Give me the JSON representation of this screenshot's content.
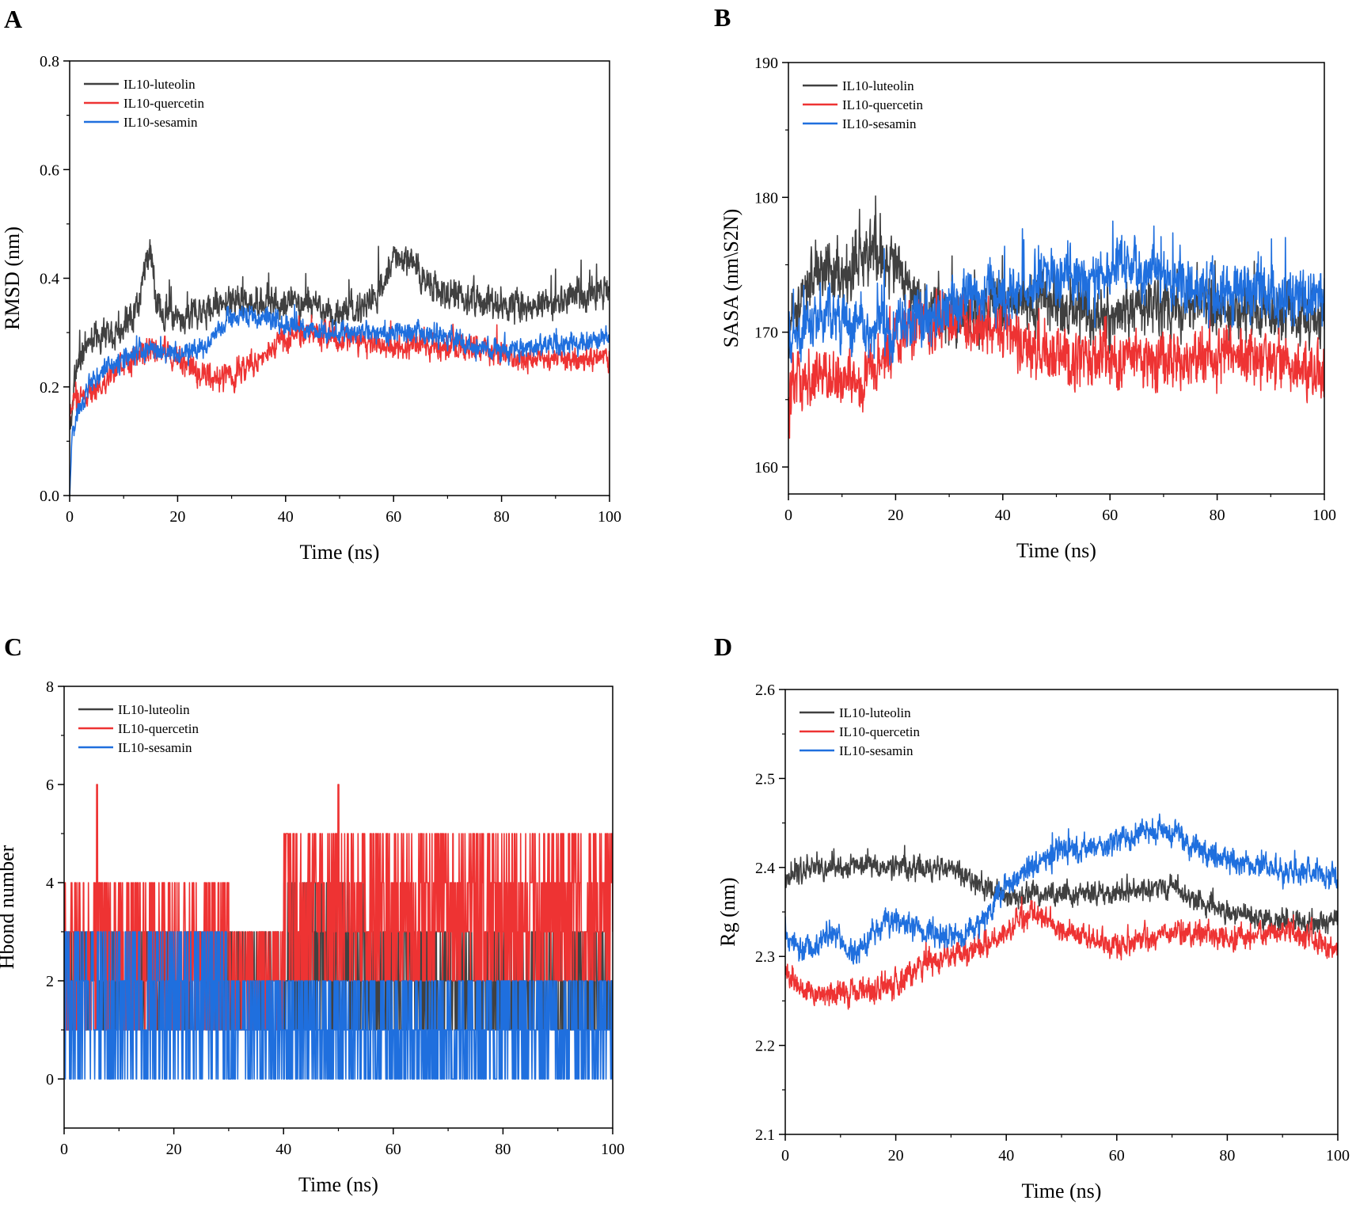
{
  "figure": {
    "panels": [
      "A",
      "B",
      "C",
      "D"
    ]
  },
  "series_names": [
    "IL10-luteolin",
    "IL10-quercetin",
    "IL10-sesamin"
  ],
  "series_colors": [
    "#404040",
    "#ee3333",
    "#1f6fde"
  ],
  "chart_data": [
    {
      "panel": "A",
      "type": "line",
      "title": "",
      "xlabel": "Time (ns)",
      "ylabel": "RMSD (nm)",
      "xlim": [
        0,
        100
      ],
      "ylim": [
        0,
        0.8
      ],
      "xticks": [
        0,
        20,
        40,
        60,
        80,
        100
      ],
      "yticks": [
        0.0,
        0.2,
        0.4,
        0.6,
        0.8
      ],
      "ytick_labels": [
        "0.0",
        "0.2",
        "0.4",
        "0.6",
        "0.8"
      ],
      "legend": "top-left",
      "series": [
        {
          "name": "IL10-luteolin",
          "color": "#404040",
          "noise": 0.035,
          "spikes": 0.05,
          "seed": 11,
          "x": [
            0,
            1,
            3,
            6,
            10,
            13,
            14,
            15,
            16,
            20,
            25,
            30,
            35,
            40,
            45,
            50,
            55,
            58,
            60,
            62,
            64,
            66,
            70,
            75,
            80,
            85,
            90,
            95,
            100
          ],
          "y": [
            0.12,
            0.22,
            0.28,
            0.3,
            0.31,
            0.36,
            0.43,
            0.45,
            0.35,
            0.32,
            0.34,
            0.36,
            0.35,
            0.36,
            0.35,
            0.33,
            0.35,
            0.38,
            0.45,
            0.44,
            0.43,
            0.39,
            0.37,
            0.36,
            0.35,
            0.34,
            0.36,
            0.37,
            0.38
          ]
        },
        {
          "name": "IL10-quercetin",
          "color": "#ee3333",
          "noise": 0.03,
          "spikes": 0.02,
          "seed": 23,
          "x": [
            0,
            2,
            5,
            10,
            15,
            20,
            25,
            30,
            35,
            40,
            45,
            50,
            55,
            60,
            65,
            70,
            75,
            80,
            85,
            90,
            95,
            100
          ],
          "y": [
            0.16,
            0.18,
            0.2,
            0.24,
            0.27,
            0.25,
            0.22,
            0.22,
            0.25,
            0.29,
            0.3,
            0.29,
            0.28,
            0.27,
            0.28,
            0.27,
            0.27,
            0.26,
            0.25,
            0.25,
            0.25,
            0.25
          ]
        },
        {
          "name": "IL10-sesamin",
          "color": "#1f6fde",
          "noise": 0.025,
          "spikes": 0.015,
          "seed": 37,
          "x": [
            0,
            0.5,
            2,
            5,
            10,
            15,
            20,
            25,
            30,
            35,
            40,
            45,
            50,
            55,
            60,
            65,
            70,
            75,
            80,
            85,
            90,
            95,
            100
          ],
          "y": [
            0.0,
            0.12,
            0.17,
            0.22,
            0.25,
            0.27,
            0.26,
            0.27,
            0.33,
            0.33,
            0.32,
            0.3,
            0.3,
            0.3,
            0.3,
            0.3,
            0.29,
            0.27,
            0.27,
            0.27,
            0.28,
            0.28,
            0.29
          ]
        }
      ]
    },
    {
      "panel": "B",
      "type": "line",
      "title": "",
      "xlabel": "Time (ns)",
      "ylabel": "SASA (nm\\S2N)",
      "xlim": [
        0,
        100
      ],
      "ylim": [
        158,
        190
      ],
      "xticks": [
        0,
        20,
        40,
        60,
        80,
        100
      ],
      "yticks": [
        160,
        170,
        180,
        190
      ],
      "ytick_labels": [
        "160",
        "170",
        "180",
        "190"
      ],
      "legend": "top-left",
      "series": [
        {
          "name": "IL10-luteolin",
          "color": "#404040",
          "noise": 2.6,
          "spikes": 2.5,
          "seed": 51,
          "x": [
            0,
            5,
            10,
            15,
            20,
            25,
            30,
            40,
            50,
            60,
            70,
            80,
            90,
            100
          ],
          "y": [
            170,
            175,
            174,
            176,
            175,
            172,
            171,
            172,
            172,
            171,
            172,
            172,
            171,
            171
          ]
        },
        {
          "name": "IL10-quercetin",
          "color": "#ee3333",
          "noise": 2.6,
          "spikes": 2.5,
          "seed": 63,
          "x": [
            0,
            5,
            10,
            15,
            20,
            25,
            30,
            40,
            50,
            60,
            70,
            80,
            90,
            100
          ],
          "y": [
            166,
            167,
            166,
            167,
            169,
            171,
            171,
            170,
            168,
            168,
            168,
            168,
            168,
            167
          ]
        },
        {
          "name": "IL10-sesamin",
          "color": "#1f6fde",
          "noise": 2.6,
          "spikes": 2.8,
          "seed": 77,
          "x": [
            0,
            5,
            10,
            15,
            20,
            25,
            30,
            40,
            50,
            60,
            62,
            70,
            80,
            90,
            100
          ],
          "y": [
            170,
            171,
            171,
            170,
            170,
            171,
            172,
            173,
            174,
            174,
            175,
            174,
            173,
            173,
            172
          ]
        }
      ]
    },
    {
      "panel": "C",
      "type": "line",
      "title": "",
      "xlabel": "Time (ns)",
      "ylabel": "Hbond number",
      "xlim": [
        0,
        100
      ],
      "ylim": [
        -1,
        8
      ],
      "xticks": [
        0,
        20,
        40,
        60,
        80,
        100
      ],
      "yticks": [
        0,
        2,
        4,
        6,
        8
      ],
      "ytick_labels": [
        "0",
        "2",
        "4",
        "6",
        "8"
      ],
      "legend": "top-left",
      "series": [
        {
          "name": "IL10-luteolin",
          "color": "#404040",
          "kind": "hbond",
          "seed": 91,
          "segments": [
            [
              0,
              30,
              1,
              3
            ],
            [
              30,
              40,
              1,
              3
            ],
            [
              40,
              55,
              1,
              4
            ],
            [
              55,
              100,
              1,
              3
            ]
          ]
        },
        {
          "name": "IL10-quercetin",
          "color": "#ee3333",
          "kind": "hbond",
          "seed": 103,
          "segments": [
            [
              0,
              30,
              1,
              4
            ],
            [
              30,
              40,
              1,
              3
            ],
            [
              40,
              100,
              2,
              5
            ]
          ],
          "peaks": [
            [
              6,
              6
            ],
            [
              50,
              6
            ]
          ]
        },
        {
          "name": "IL10-sesamin",
          "color": "#1f6fde",
          "kind": "hbond",
          "seed": 117,
          "segments": [
            [
              0,
              30,
              0,
              3
            ],
            [
              30,
              100,
              0,
              2
            ]
          ]
        }
      ]
    },
    {
      "panel": "D",
      "type": "line",
      "title": "",
      "xlabel": "Time (ns)",
      "ylabel": "Rg (nm)",
      "xlim": [
        0,
        100
      ],
      "ylim": [
        2.1,
        2.6
      ],
      "xticks": [
        0,
        20,
        40,
        60,
        80,
        100
      ],
      "yticks": [
        2.1,
        2.2,
        2.3,
        2.4,
        2.5,
        2.6
      ],
      "ytick_labels": [
        "2.1",
        "2.2",
        "2.3",
        "2.4",
        "2.5",
        "2.6"
      ],
      "legend": "top-left",
      "series": [
        {
          "name": "IL10-luteolin",
          "color": "#404040",
          "noise": 0.016,
          "spikes": 0.012,
          "seed": 131,
          "x": [
            0,
            5,
            10,
            20,
            30,
            35,
            40,
            50,
            60,
            70,
            75,
            80,
            90,
            100
          ],
          "y": [
            2.39,
            2.4,
            2.4,
            2.4,
            2.4,
            2.38,
            2.37,
            2.37,
            2.37,
            2.38,
            2.36,
            2.35,
            2.34,
            2.34
          ]
        },
        {
          "name": "IL10-quercetin",
          "color": "#ee3333",
          "noise": 0.018,
          "spikes": 0.015,
          "seed": 149,
          "x": [
            0,
            5,
            10,
            15,
            20,
            25,
            30,
            35,
            40,
            45,
            50,
            60,
            70,
            80,
            90,
            100
          ],
          "y": [
            2.28,
            2.26,
            2.26,
            2.26,
            2.27,
            2.29,
            2.3,
            2.31,
            2.33,
            2.35,
            2.33,
            2.31,
            2.33,
            2.32,
            2.33,
            2.31
          ]
        },
        {
          "name": "IL10-sesamin",
          "color": "#1f6fde",
          "noise": 0.018,
          "spikes": 0.015,
          "seed": 167,
          "x": [
            0,
            3,
            8,
            12,
            18,
            25,
            30,
            35,
            40,
            45,
            50,
            55,
            60,
            65,
            70,
            75,
            80,
            90,
            100
          ],
          "y": [
            2.33,
            2.3,
            2.33,
            2.3,
            2.34,
            2.33,
            2.32,
            2.33,
            2.38,
            2.4,
            2.42,
            2.42,
            2.43,
            2.44,
            2.44,
            2.42,
            2.41,
            2.4,
            2.39
          ]
        }
      ]
    }
  ]
}
